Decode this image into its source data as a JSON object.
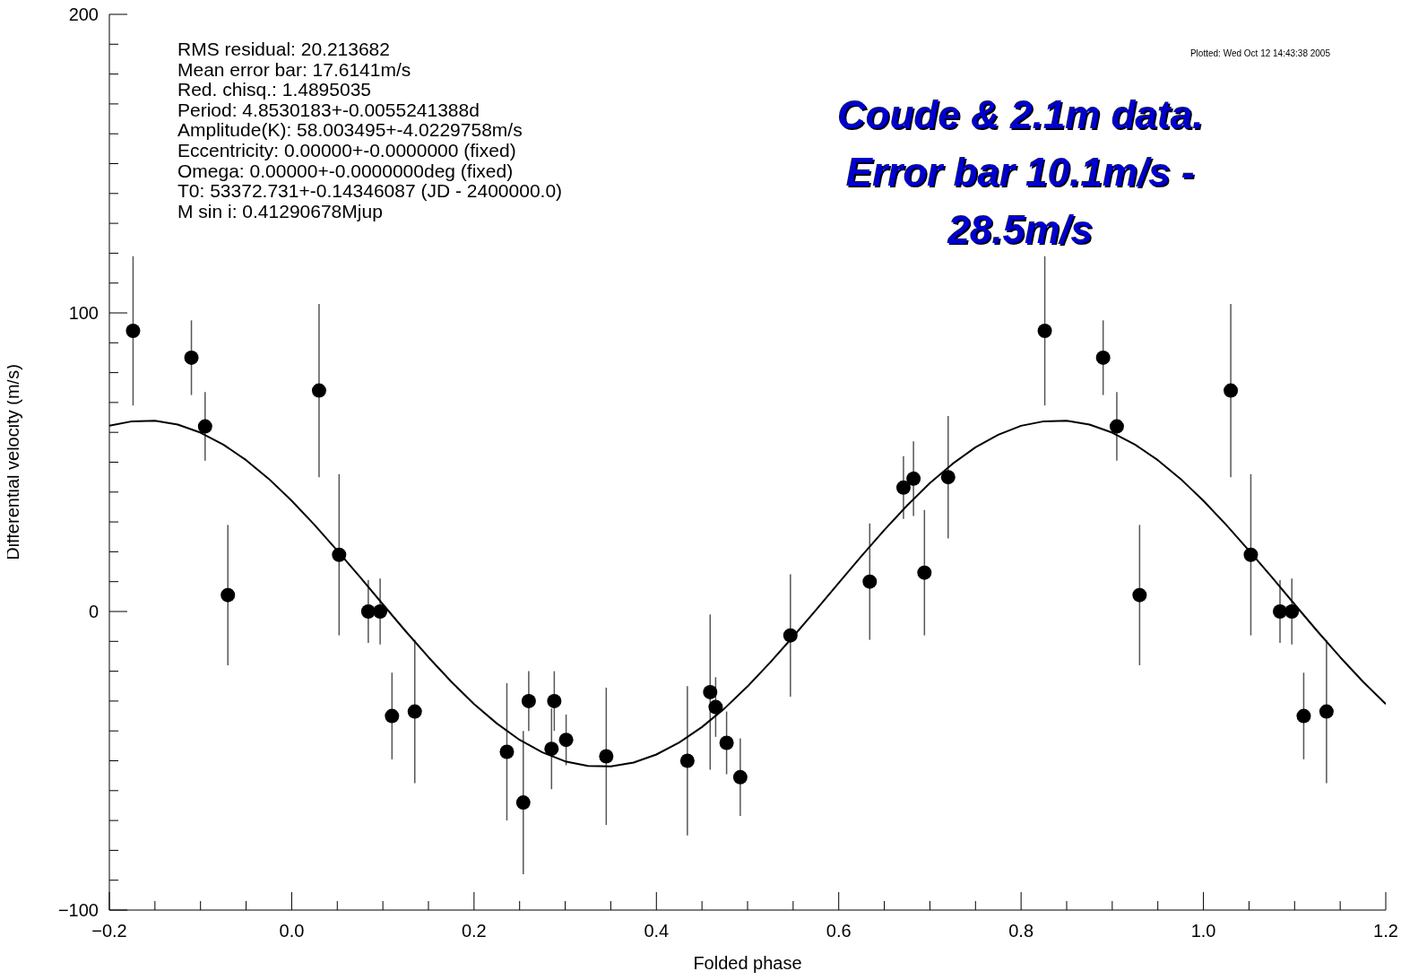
{
  "chart_data": {
    "type": "scatter",
    "xlabel": "Folded phase",
    "ylabel": "Differential velocity (m/s)",
    "xlim": [
      -0.2,
      1.2
    ],
    "ylim": [
      -100,
      200
    ],
    "xticks": [
      {
        "value": -0.2,
        "label": "−0.2"
      },
      {
        "value": -0.15,
        "label": null
      },
      {
        "value": -0.1,
        "label": null
      },
      {
        "value": -0.05,
        "label": null
      },
      {
        "value": 0,
        "label": "0.0"
      },
      {
        "value": 0.05,
        "label": null
      },
      {
        "value": 0.1,
        "label": null
      },
      {
        "value": 0.15,
        "label": null
      },
      {
        "value": 0.2,
        "label": "0.2"
      },
      {
        "value": 0.25,
        "label": null
      },
      {
        "value": 0.3,
        "label": null
      },
      {
        "value": 0.35,
        "label": null
      },
      {
        "value": 0.4,
        "label": "0.4"
      },
      {
        "value": 0.45,
        "label": null
      },
      {
        "value": 0.5,
        "label": null
      },
      {
        "value": 0.55,
        "label": null
      },
      {
        "value": 0.6,
        "label": "0.6"
      },
      {
        "value": 0.65,
        "label": null
      },
      {
        "value": 0.7,
        "label": null
      },
      {
        "value": 0.75,
        "label": null
      },
      {
        "value": 0.8,
        "label": "0.8"
      },
      {
        "value": 0.85,
        "label": null
      },
      {
        "value": 0.9,
        "label": null
      },
      {
        "value": 0.95,
        "label": null
      },
      {
        "value": 1,
        "label": "1.0"
      },
      {
        "value": 1.05,
        "label": null
      },
      {
        "value": 1.1,
        "label": null
      },
      {
        "value": 1.15,
        "label": null
      },
      {
        "value": 1.2,
        "label": "1.2"
      }
    ],
    "yticks": [
      {
        "value": -100,
        "label": "−100"
      },
      {
        "value": -90,
        "label": null
      },
      {
        "value": -80,
        "label": null
      },
      {
        "value": -70,
        "label": null
      },
      {
        "value": -60,
        "label": null
      },
      {
        "value": -50,
        "label": null
      },
      {
        "value": -40,
        "label": null
      },
      {
        "value": -30,
        "label": null
      },
      {
        "value": -20,
        "label": null
      },
      {
        "value": -10,
        "label": null
      },
      {
        "value": 0,
        "label": "0"
      },
      {
        "value": 10,
        "label": null
      },
      {
        "value": 20,
        "label": null
      },
      {
        "value": 30,
        "label": null
      },
      {
        "value": 40,
        "label": null
      },
      {
        "value": 50,
        "label": null
      },
      {
        "value": 60,
        "label": null
      },
      {
        "value": 70,
        "label": null
      },
      {
        "value": 80,
        "label": null
      },
      {
        "value": 90,
        "label": null
      },
      {
        "value": 100,
        "label": "100"
      },
      {
        "value": 110,
        "label": null
      },
      {
        "value": 120,
        "label": null
      },
      {
        "value": 130,
        "label": null
      },
      {
        "value": 140,
        "label": null
      },
      {
        "value": 150,
        "label": null
      },
      {
        "value": 160,
        "label": null
      },
      {
        "value": 170,
        "label": null
      },
      {
        "value": 180,
        "label": null
      },
      {
        "value": 190,
        "label": null
      },
      {
        "value": 200,
        "label": "200"
      }
    ],
    "series": [
      {
        "color": "#000000",
        "marker": "circle",
        "x": [
          -0.174,
          -0.11,
          -0.095,
          -0.07,
          0.03,
          0.052,
          0.084,
          0.097,
          0.11,
          0.135,
          0.236,
          0.254,
          0.26,
          0.285,
          0.288,
          0.301,
          0.345,
          0.434,
          0.459,
          0.465,
          0.477,
          0.492,
          0.547,
          0.634,
          0.671,
          0.682,
          0.694,
          0.72,
          0.826,
          0.89,
          0.905,
          0.93,
          1.03,
          1.052,
          1.084,
          1.097,
          1.11,
          1.135
        ],
        "values": [
          94,
          85,
          62,
          5.5,
          74,
          19,
          0,
          0,
          -35,
          -33.5,
          -47,
          -64,
          -30,
          -46,
          -30,
          -43,
          -48.5,
          -50,
          -27,
          -32,
          -44,
          -55.5,
          -8,
          10,
          41.5,
          44.5,
          13,
          45,
          94,
          85,
          62,
          5.5,
          74,
          19,
          0,
          0,
          -35,
          -33.5
        ],
        "errors": [
          25,
          12.5,
          11.5,
          23.5,
          29,
          27,
          10.5,
          11,
          14.5,
          24,
          23,
          24,
          10,
          13.5,
          10,
          8.5,
          23,
          25,
          26,
          10,
          10.5,
          13,
          20.5,
          19.5,
          10.5,
          12.5,
          21,
          20.5,
          25,
          12.5,
          11.5,
          23.5,
          29,
          27,
          10.5,
          11,
          14.5,
          24
        ]
      },
      {
        "type": "line",
        "color": "#000000",
        "marker": "none",
        "line_style": "solid",
        "x": [
          -0.2,
          -0.175,
          -0.15,
          -0.125,
          -0.1,
          -0.075,
          -0.05,
          -0.025,
          0,
          0.025,
          0.05,
          0.075,
          0.1,
          0.125,
          0.15,
          0.175,
          0.2,
          0.225,
          0.25,
          0.275,
          0.3,
          0.325,
          0.35,
          0.375,
          0.4,
          0.425,
          0.45,
          0.475,
          0.5,
          0.525,
          0.55,
          0.575,
          0.6,
          0.625,
          0.65,
          0.675,
          0.7,
          0.725,
          0.75,
          0.775,
          0.8,
          0.825,
          0.85,
          0.875,
          0.9,
          0.925,
          0.95,
          0.975,
          1,
          1.025,
          1.05,
          1.075,
          1.1,
          1.125,
          1.15,
          1.175,
          1.2
        ],
        "values": [
          62.2,
          63.7,
          63.9,
          62.6,
          59.9,
          55.9,
          50.7,
          44.4,
          37.1,
          29.0,
          20.4,
          11.5,
          2.4,
          -6.6,
          -15.3,
          -23.5,
          -31.0,
          -37.5,
          -43.0,
          -47.2,
          -50.2,
          -51.7,
          -51.9,
          -50.6,
          -47.9,
          -43.9,
          -38.7,
          -32.4,
          -25.1,
          -17.0,
          -8.4,
          0.5,
          9.6,
          18.6,
          27.3,
          35.5,
          43.0,
          49.5,
          55.0,
          59.2,
          62.2,
          63.7,
          63.9,
          62.6,
          59.9,
          55.9,
          50.7,
          44.4,
          37.1,
          29.0,
          20.4,
          11.5,
          2.4,
          -6.6,
          -15.3,
          -23.5,
          -31.0
        ]
      }
    ],
    "annotations": [
      "RMS residual: 20.213682",
      "Mean error bar: 17.6141m/s",
      "Red. chisq.: 1.4895035",
      "Period: 4.8530183+-0.0055241388d",
      "Amplitude(K): 58.003495+-4.0229758m/s",
      "Eccentricity: 0.00000+-0.0000000 (fixed)",
      "Omega: 0.00000+-0.0000000deg (fixed)",
      "T0: 53372.731+-0.14346087 (JD - 2400000.0)",
      "M sin i: 0.41290678Mjup",
      "Plotted: Wed Oct 12 14:43:38 2005",
      "Coude & 2.1m data. Error bar 10.1m/s - 28.5m/s"
    ]
  }
}
